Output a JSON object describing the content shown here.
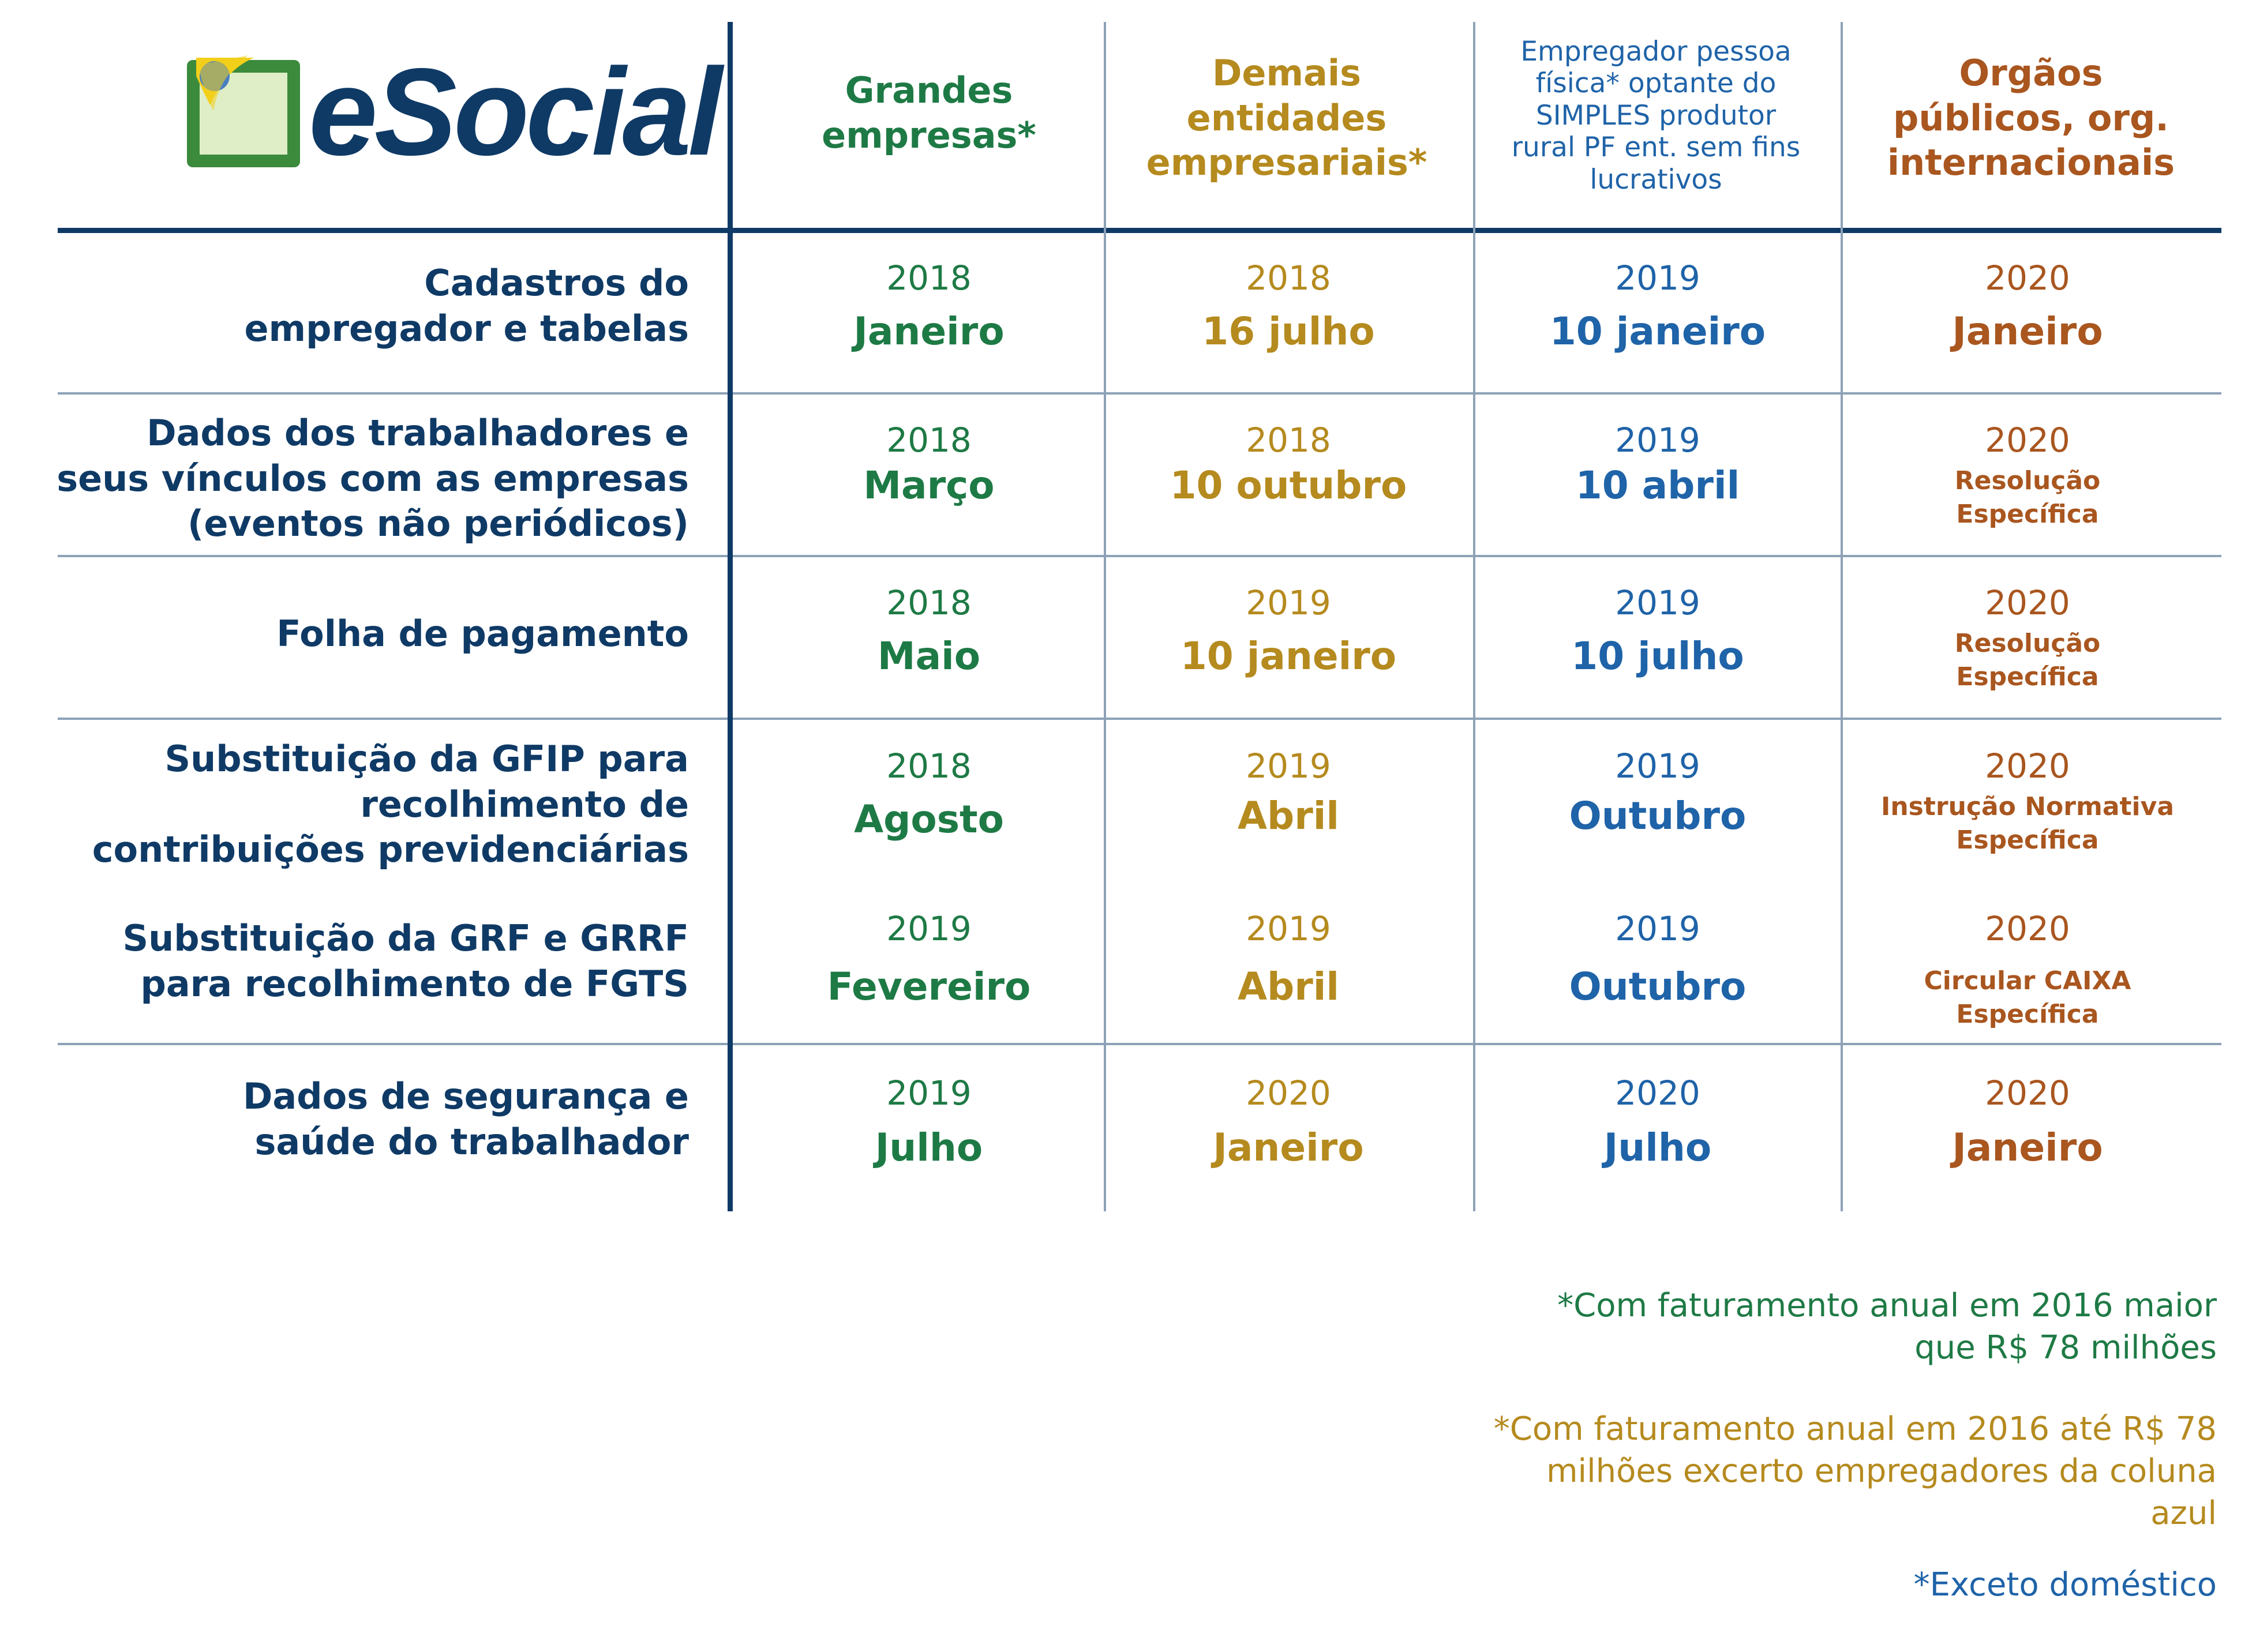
{
  "logo": {
    "wordmark": "eSocial"
  },
  "columns": [
    {
      "label": "Grandes empresas*",
      "color": "#1e7a45"
    },
    {
      "label": "Demais entidades empresariais*",
      "color": "#b58a1e"
    },
    {
      "label": "Empregador pessoa física* optante do SIMPLES produtor rural PF ent. sem fins lucrativos",
      "color": "#1f63a8"
    },
    {
      "label": "Orgãos públicos, org. internacionais",
      "color": "#a9561f"
    }
  ],
  "rows": [
    {
      "label": "Cadastros do empregador e tabelas",
      "cells": [
        {
          "year": "2018",
          "value": "Janeiro"
        },
        {
          "year": "2018",
          "value": "16 julho"
        },
        {
          "year": "2019",
          "value": "10 janeiro"
        },
        {
          "year": "2020",
          "value": "Janeiro"
        }
      ]
    },
    {
      "label": "Dados dos trabalhadores e seus vínculos com as empresas (eventos não periódicos)",
      "cells": [
        {
          "year": "2018",
          "value": "Março"
        },
        {
          "year": "2018",
          "value": "10 outubro"
        },
        {
          "year": "2019",
          "value": "10 abril"
        },
        {
          "year": "2020",
          "note": "Resolução Específica"
        }
      ]
    },
    {
      "label": "Folha de pagamento",
      "cells": [
        {
          "year": "2018",
          "value": "Maio"
        },
        {
          "year": "2019",
          "value": "10 janeiro"
        },
        {
          "year": "2019",
          "value": "10 julho"
        },
        {
          "year": "2020",
          "note": "Resolução Específica"
        }
      ]
    },
    {
      "label": "Substituição da GFIP para recolhimento de contribuições previdenciárias",
      "cells": [
        {
          "year": "2018",
          "value": "Agosto"
        },
        {
          "year": "2019",
          "value": "Abril"
        },
        {
          "year": "2019",
          "value": "Outubro"
        },
        {
          "year": "2020",
          "note": "Instrução Normativa Específica"
        }
      ]
    },
    {
      "label": "Substituição da GRF e GRRF para recolhimento de FGTS",
      "cells": [
        {
          "year": "2019",
          "value": "Fevereiro"
        },
        {
          "year": "2019",
          "value": "Abril"
        },
        {
          "year": "2019",
          "value": "Outubro"
        },
        {
          "year": "2020",
          "note": "Circular CAIXA Específica"
        }
      ]
    },
    {
      "label": "Dados de segurança e saúde do trabalhador",
      "cells": [
        {
          "year": "2019",
          "value": "Julho"
        },
        {
          "year": "2020",
          "value": "Janeiro"
        },
        {
          "year": "2020",
          "value": "Julho"
        },
        {
          "year": "2020",
          "value": "Janeiro"
        }
      ]
    }
  ],
  "footnotes": [
    {
      "text": "*Com faturamento anual em 2016 maior que R$ 78 milhões",
      "color": "#1e7a45"
    },
    {
      "text": "*Com faturamento anual em 2016 até R$ 78 milhões excerto empregadores da coluna azul",
      "color": "#b58a1e"
    },
    {
      "text": "*Exceto doméstico",
      "color": "#1f63a8"
    }
  ]
}
